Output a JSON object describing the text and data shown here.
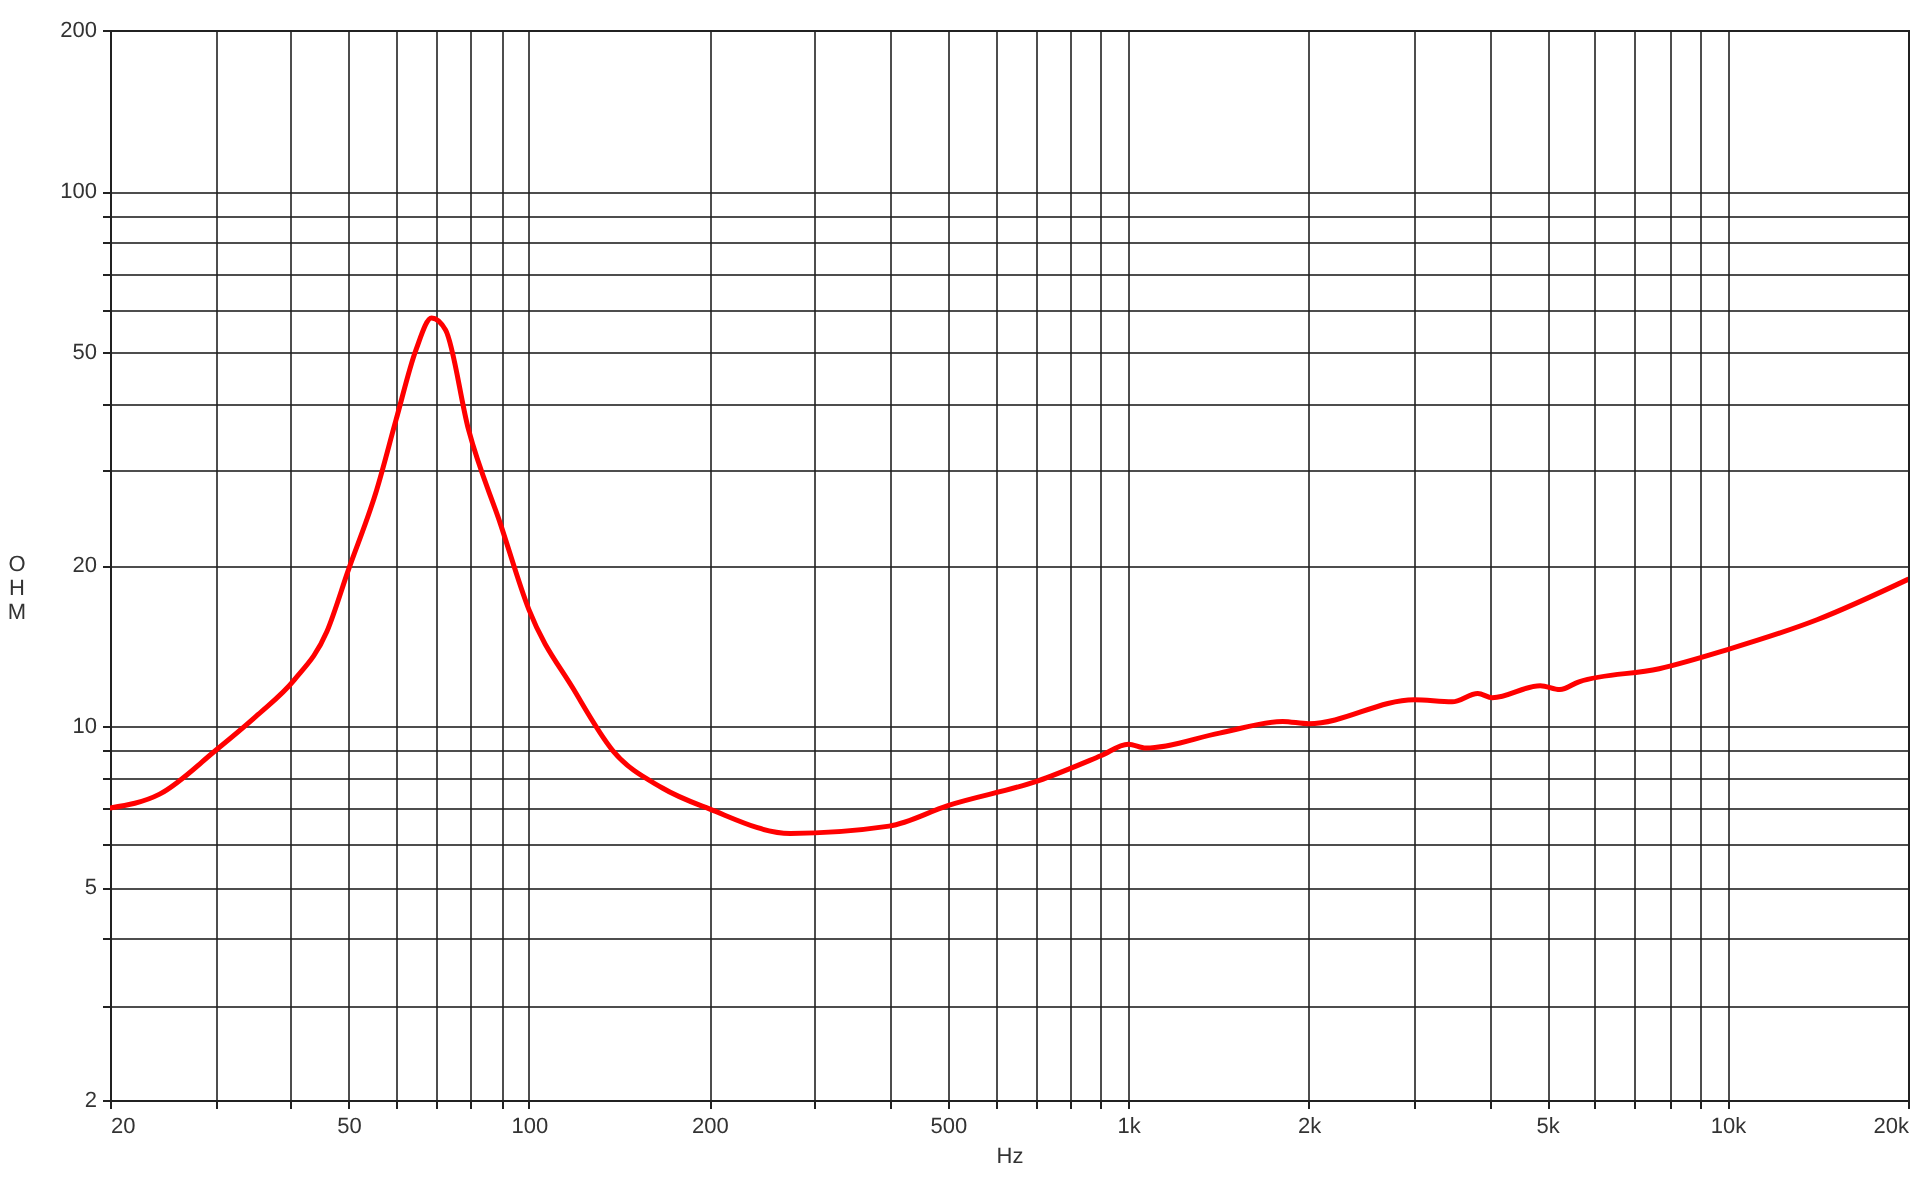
{
  "chart_data": {
    "type": "line",
    "xlabel": "Hz",
    "ylabel": "OHM",
    "log": "xy",
    "grid": true,
    "xlim": [
      20,
      20000
    ],
    "ylim": [
      2,
      200
    ],
    "xticks": [
      20,
      {
        "value": 30,
        "label": null
      },
      {
        "value": 40,
        "label": null
      },
      50,
      {
        "value": 60,
        "label": null
      },
      {
        "value": 70,
        "label": null
      },
      {
        "value": 80,
        "label": null
      },
      {
        "value": 90,
        "label": null
      },
      100,
      200,
      {
        "value": 300,
        "label": null
      },
      {
        "value": 400,
        "label": null
      },
      500,
      {
        "value": 600,
        "label": null
      },
      {
        "value": 700,
        "label": null
      },
      {
        "value": 800,
        "label": null
      },
      {
        "value": 900,
        "label": null
      },
      {
        "value": 1000,
        "label": "1k"
      },
      {
        "value": 2000,
        "label": "2k"
      },
      {
        "value": 3000,
        "label": null
      },
      {
        "value": 4000,
        "label": null
      },
      {
        "value": 5000,
        "label": "5k"
      },
      {
        "value": 6000,
        "label": null
      },
      {
        "value": 7000,
        "label": null
      },
      {
        "value": 8000,
        "label": null
      },
      {
        "value": 9000,
        "label": null
      },
      {
        "value": 10000,
        "label": "10k"
      },
      {
        "value": 20000,
        "label": "20k"
      }
    ],
    "yticks": [
      2,
      {
        "value": 3,
        "label": null
      },
      {
        "value": 4,
        "label": null
      },
      5,
      {
        "value": 6,
        "label": null
      },
      {
        "value": 7,
        "label": null
      },
      {
        "value": 8,
        "label": null
      },
      {
        "value": 9,
        "label": null
      },
      10,
      20,
      {
        "value": 30,
        "label": null
      },
      {
        "value": 40,
        "label": null
      },
      50,
      {
        "value": 60,
        "label": null
      },
      {
        "value": 70,
        "label": null
      },
      {
        "value": 80,
        "label": null
      },
      {
        "value": 90,
        "label": null
      },
      100,
      200
    ],
    "x": [
      20,
      24.2,
      30,
      35.3,
      40.6,
      46,
      50,
      55.7,
      60,
      64.8,
      68.8,
      72.6,
      79.3,
      89.6,
      100,
      118.8,
      138,
      167,
      200,
      273,
      399,
      500,
      707,
      900,
      1000,
      1070,
      1420,
      1810,
      2000,
      3000,
      3470,
      3830,
      4050,
      4870,
      5250,
      5650,
      7690,
      10000,
      14100,
      20000
    ],
    "series": [
      {
        "color": "#ff0000",
        "values": [
          7.03,
          7.46,
          9.0,
          10.5,
          12.2,
          15.0,
          19.6,
          27.6,
          37.3,
          50.5,
          57.9,
          55.0,
          35.8,
          23.9,
          16.5,
          11.7,
          9.0,
          7.66,
          7.0,
          6.3,
          6.5,
          7.1,
          7.9,
          8.8,
          9.25,
          9.1,
          9.7,
          10.2,
          10.1,
          11.2,
          11.1,
          11.5,
          11.3,
          11.9,
          11.7,
          12.1,
          12.8,
          13.9,
          15.8,
          18.8
        ]
      }
    ]
  }
}
